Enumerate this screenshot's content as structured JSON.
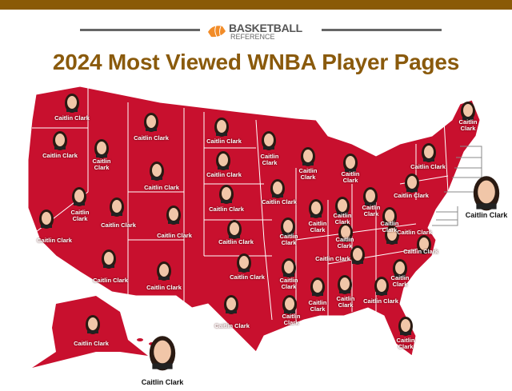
{
  "header": {
    "logo_line1": "BASKETBALL",
    "logo_line2": "REFERENCE",
    "title": "2024 Most Viewed WNBA Player Pages"
  },
  "colors": {
    "brand": "#8a5a06",
    "map_fill": "#c8102e",
    "borders": "#ffffff"
  },
  "map": {
    "labels": [
      "Caitlin Clark",
      "Caitlin Clark",
      "Caitlin\nClark",
      "Caitlin Clark",
      "Caitlin Clark",
      "Caitlin\nClark",
      "Caitlin\nClark",
      "Caitlin\nClark",
      "Caitlin Clark",
      "Caitlin\nClark",
      "Caitlin Clark",
      "Caitlin Clark",
      "Caitlin\nClark",
      "Caitlin Clark",
      "Caitlin Clark",
      "Caitlin Clark",
      "Caitlin Clark",
      "Caitlin Clark",
      "Caitlin\nClark",
      "Caitlin\nClark",
      "Caitlin\nClark",
      "Caitlin Clark",
      "Caitlin\nClark",
      "Caitlin Clark",
      "Caitlin Clark",
      "Caitlin\nClark",
      "Caitlin\nClark",
      "Caitlin Clark",
      "Caitlin Clark",
      "Caitlin Clark",
      "Caitlin Clark",
      "Caitlin Clark",
      "Caitlin\nClark",
      "Caitlin\nClark",
      "Caitlin\nClark",
      "Caitlin\nClark",
      "Caitlin Clark",
      "Caitlin\nClark",
      "Caitlin Clark",
      "Caitlin\nClark",
      "Caitlin Clark",
      "Caitlin Clark",
      "Caitlin Clark"
    ]
  }
}
